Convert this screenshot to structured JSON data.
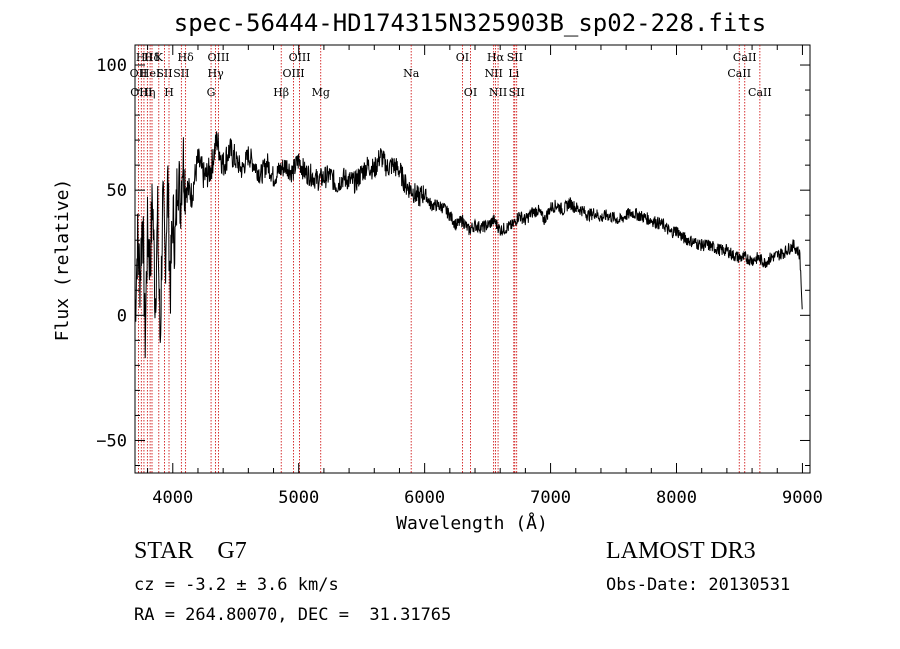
{
  "chart_data": {
    "type": "line",
    "title": "spec-56444-HD174315N325903B_sp02-228.fits",
    "xlabel": "Wavelength (Å)",
    "ylabel": "Flux (relative)",
    "xlim": [
      3700,
      9060
    ],
    "ylim": [
      -63,
      108
    ],
    "x_ticks": [
      4000,
      5000,
      6000,
      7000,
      8000,
      9000
    ],
    "y_ticks": [
      -50,
      0,
      50,
      100
    ],
    "grid": false,
    "series": [
      {
        "name": "flux",
        "color": "#000000",
        "x": [
          3700,
          3720,
          3740,
          3760,
          3780,
          3800,
          3820,
          3840,
          3860,
          3880,
          3900,
          3920,
          3940,
          3960,
          3980,
          4000,
          4020,
          4040,
          4060,
          4080,
          4100,
          4150,
          4200,
          4250,
          4300,
          4350,
          4400,
          4450,
          4500,
          4550,
          4600,
          4650,
          4700,
          4750,
          4800,
          4850,
          4900,
          4950,
          5000,
          5050,
          5100,
          5150,
          5200,
          5250,
          5300,
          5350,
          5400,
          5450,
          5500,
          5550,
          5600,
          5650,
          5700,
          5750,
          5800,
          5850,
          5900,
          5950,
          6000,
          6050,
          6100,
          6150,
          6200,
          6250,
          6300,
          6350,
          6400,
          6450,
          6500,
          6550,
          6600,
          6650,
          6700,
          6750,
          6800,
          6850,
          6900,
          6950,
          7000,
          7050,
          7100,
          7150,
          7200,
          7250,
          7300,
          7350,
          7400,
          7450,
          7500,
          7550,
          7600,
          7650,
          7700,
          7750,
          7800,
          7850,
          7900,
          7950,
          8000,
          8050,
          8100,
          8150,
          8200,
          8250,
          8300,
          8350,
          8400,
          8450,
          8500,
          8550,
          8600,
          8650,
          8700,
          8750,
          8800,
          8850,
          8900,
          8930,
          8960,
          8980,
          8990,
          9000
        ],
        "y": [
          0,
          30,
          15,
          42,
          -10,
          35,
          20,
          48,
          5,
          38,
          -12,
          45,
          22,
          55,
          10,
          40,
          28,
          60,
          45,
          65,
          52,
          48,
          62,
          55,
          58,
          70,
          60,
          66,
          62,
          58,
          64,
          60,
          56,
          61,
          55,
          58,
          60,
          57,
          62,
          57,
          56,
          54,
          55,
          56,
          52,
          55,
          54,
          53,
          57,
          60,
          58,
          64,
          59,
          60,
          58,
          52,
          50,
          47,
          49,
          44,
          44,
          43,
          40,
          36,
          38,
          34,
          36,
          35,
          36,
          38,
          34,
          35,
          36,
          40,
          38,
          41,
          42,
          38,
          43,
          44,
          42,
          45,
          43,
          42,
          40,
          41,
          39,
          40,
          39,
          38,
          40,
          41,
          40,
          39,
          38,
          37,
          36,
          33,
          34,
          31,
          30,
          29,
          28,
          28,
          27,
          26,
          26,
          24,
          23,
          23,
          22,
          23,
          21,
          23,
          24,
          25,
          27,
          28,
          26,
          24,
          12,
          0
        ]
      }
    ],
    "line_ids": [
      {
        "wavelength": 3728,
        "label": "OII",
        "tier": 2
      },
      {
        "wavelength": 3750,
        "label": "OIII",
        "tier": 3
      },
      {
        "wavelength": 3771,
        "label": "Hθ",
        "tier": 1
      },
      {
        "wavelength": 3798,
        "label": "Hη",
        "tier": 3
      },
      {
        "wavelength": 3820,
        "label": "HeI",
        "tier": 2
      },
      {
        "wavelength": 3835,
        "label": "Hδ",
        "tier": 1
      },
      {
        "wavelength": 3889,
        "label": "K",
        "tier": 1
      },
      {
        "wavelength": 3934,
        "label": "SII",
        "tier": 2
      },
      {
        "wavelength": 3970,
        "label": "H",
        "tier": 3
      },
      {
        "wavelength": 4102,
        "label": "Hδ",
        "tier": 1
      },
      {
        "wavelength": 4068,
        "label": "SII",
        "tier": 2
      },
      {
        "wavelength": 4304,
        "label": "G",
        "tier": 3
      },
      {
        "wavelength": 4340,
        "label": "Hγ",
        "tier": 2
      },
      {
        "wavelength": 4363,
        "label": "OIII",
        "tier": 1
      },
      {
        "wavelength": 4861,
        "label": "Hβ",
        "tier": 3
      },
      {
        "wavelength": 4959,
        "label": "OIII",
        "tier": 2
      },
      {
        "wavelength": 5007,
        "label": "OIII",
        "tier": 1
      },
      {
        "wavelength": 5175,
        "label": "Mg",
        "tier": 3
      },
      {
        "wavelength": 5893,
        "label": "Na",
        "tier": 2
      },
      {
        "wavelength": 6300,
        "label": "OI",
        "tier": 1
      },
      {
        "wavelength": 6364,
        "label": "OI",
        "tier": 3
      },
      {
        "wavelength": 6548,
        "label": "NII",
        "tier": 2
      },
      {
        "wavelength": 6563,
        "label": "Hα",
        "tier": 1
      },
      {
        "wavelength": 6583,
        "label": "NII",
        "tier": 3
      },
      {
        "wavelength": 6708,
        "label": "Li",
        "tier": 2
      },
      {
        "wavelength": 6716,
        "label": "SII",
        "tier": 1
      },
      {
        "wavelength": 6731,
        "label": "SII",
        "tier": 3
      },
      {
        "wavelength": 8498,
        "label": "CaII",
        "tier": 2
      },
      {
        "wavelength": 8542,
        "label": "CaII",
        "tier": 1
      },
      {
        "wavelength": 8662,
        "label": "CaII",
        "tier": 3
      }
    ]
  },
  "footer": {
    "star_type": "STAR    G7",
    "survey": "LAMOST DR3",
    "cz": "cz = -3.2 ± 3.6 km/s",
    "obs_date": "Obs-Date: 20130531",
    "radec": "RA = 264.80070, DEC =  31.31765"
  }
}
